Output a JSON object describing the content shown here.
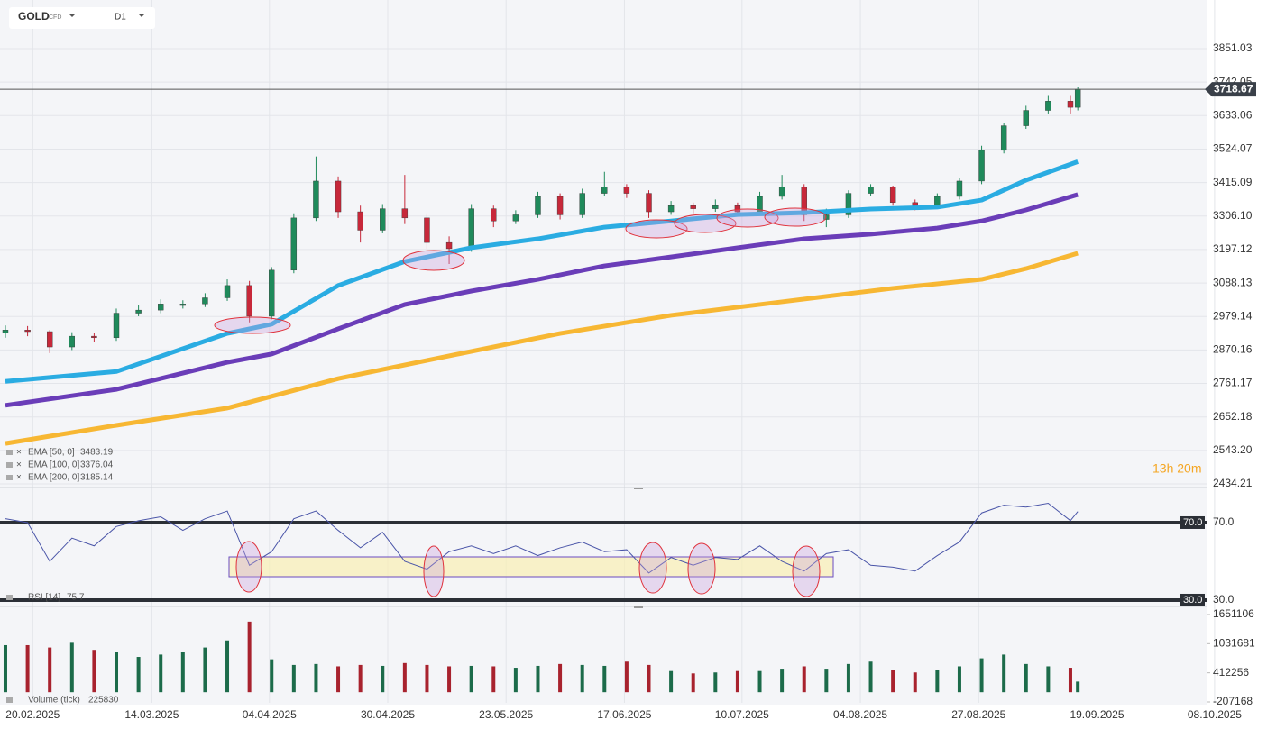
{
  "chart_data": {
    "type": "candlestick",
    "symbol": "GOLD",
    "symbol_tag": "CFD",
    "interval": "D1",
    "countdown": "13h 20m",
    "up_color": "#1f8a5b",
    "down_color": "#c7283a",
    "grid": true,
    "xlim": [
      -0.73,
      164
    ],
    "xticks": [
      {
        "value": 3.7,
        "label": "20.02.2025"
      },
      {
        "value": 19.8,
        "label": "14.03.2025"
      },
      {
        "value": 35.7,
        "label": "04.04.2025"
      },
      {
        "value": 51.7,
        "label": "30.04.2025"
      },
      {
        "value": 67.7,
        "label": "23.05.2025"
      },
      {
        "value": 83.7,
        "label": "17.06.2025"
      },
      {
        "value": 99.6,
        "label": "10.07.2025"
      },
      {
        "value": 115.6,
        "label": "04.08.2025"
      },
      {
        "value": 131.6,
        "label": "27.08.2025"
      },
      {
        "value": 147.6,
        "label": "19.09.2025"
      },
      {
        "value": 163.5,
        "label": "08.10.2025"
      }
    ],
    "price": {
      "ylim": [
        2425.5,
        4009.4
      ],
      "yticks": [
        3851.03,
        3742.05,
        3633.06,
        3524.07,
        3415.09,
        {
          "value": 3306.1,
          "label": "3306.10"
        },
        3197.12,
        3088.13,
        2979.14,
        2870.16,
        2761.17,
        2652.18,
        {
          "value": 2543.2,
          "label": "2543.20"
        },
        2434.21
      ],
      "x": [
        0,
        3,
        6,
        9,
        12,
        15,
        18,
        21,
        24,
        27,
        30,
        33,
        36,
        39,
        42,
        45,
        48,
        51,
        54,
        57,
        60,
        63,
        66,
        69,
        72,
        75,
        78,
        81,
        84,
        87,
        90,
        93,
        96,
        99,
        102,
        105,
        108,
        111,
        114,
        117,
        120,
        123,
        126,
        129,
        132,
        135,
        138,
        141,
        144,
        145
      ],
      "candles": [
        {
          "open": 2925,
          "high": 2950,
          "low": 2910,
          "close": 2935
        },
        {
          "open": 2935,
          "high": 2948,
          "low": 2915,
          "close": 2930
        },
        {
          "open": 2930,
          "high": 2935,
          "low": 2860,
          "close": 2880
        },
        {
          "open": 2880,
          "high": 2928,
          "low": 2870,
          "close": 2915
        },
        {
          "open": 2915,
          "high": 2925,
          "low": 2895,
          "close": 2910
        },
        {
          "open": 2910,
          "high": 3005,
          "low": 2900,
          "close": 2990
        },
        {
          "open": 2990,
          "high": 3015,
          "low": 2980,
          "close": 3000
        },
        {
          "open": 3000,
          "high": 3035,
          "low": 2990,
          "close": 3020
        },
        {
          "open": 3015,
          "high": 3032,
          "low": 3005,
          "close": 3020
        },
        {
          "open": 3020,
          "high": 3055,
          "low": 3010,
          "close": 3040
        },
        {
          "open": 3040,
          "high": 3100,
          "low": 3030,
          "close": 3080
        },
        {
          "open": 3080,
          "high": 3095,
          "low": 2960,
          "close": 2980
        },
        {
          "open": 2980,
          "high": 3140,
          "low": 2970,
          "close": 3130
        },
        {
          "open": 3130,
          "high": 3315,
          "low": 3120,
          "close": 3300
        },
        {
          "open": 3300,
          "high": 3500,
          "low": 3290,
          "close": 3420
        },
        {
          "open": 3420,
          "high": 3435,
          "low": 3300,
          "close": 3320
        },
        {
          "open": 3320,
          "high": 3340,
          "low": 3220,
          "close": 3260
        },
        {
          "open": 3260,
          "high": 3345,
          "low": 3250,
          "close": 3330
        },
        {
          "open": 3330,
          "high": 3440,
          "low": 3280,
          "close": 3300
        },
        {
          "open": 3300,
          "high": 3315,
          "low": 3200,
          "close": 3220
        },
        {
          "open": 3220,
          "high": 3240,
          "low": 3150,
          "close": 3200
        },
        {
          "open": 3200,
          "high": 3345,
          "low": 3190,
          "close": 3330
        },
        {
          "open": 3330,
          "high": 3340,
          "low": 3270,
          "close": 3290
        },
        {
          "open": 3290,
          "high": 3325,
          "low": 3280,
          "close": 3310
        },
        {
          "open": 3310,
          "high": 3385,
          "low": 3300,
          "close": 3370
        },
        {
          "open": 3370,
          "high": 3380,
          "low": 3295,
          "close": 3310
        },
        {
          "open": 3310,
          "high": 3395,
          "low": 3300,
          "close": 3380
        },
        {
          "open": 3380,
          "high": 3450,
          "low": 3370,
          "close": 3400
        },
        {
          "open": 3400,
          "high": 3410,
          "low": 3365,
          "close": 3380
        },
        {
          "open": 3380,
          "high": 3390,
          "low": 3300,
          "close": 3320
        },
        {
          "open": 3320,
          "high": 3355,
          "low": 3310,
          "close": 3340
        },
        {
          "open": 3340,
          "high": 3350,
          "low": 3315,
          "close": 3330
        },
        {
          "open": 3330,
          "high": 3360,
          "low": 3320,
          "close": 3340
        },
        {
          "open": 3340,
          "high": 3350,
          "low": 3305,
          "close": 3320
        },
        {
          "open": 3320,
          "high": 3385,
          "low": 3315,
          "close": 3370
        },
        {
          "open": 3370,
          "high": 3440,
          "low": 3360,
          "close": 3400
        },
        {
          "open": 3400,
          "high": 3410,
          "low": 3290,
          "close": 3310
        },
        {
          "open": 3295,
          "high": 3330,
          "low": 3270,
          "close": 3310
        },
        {
          "open": 3310,
          "high": 3390,
          "low": 3300,
          "close": 3380
        },
        {
          "open": 3380,
          "high": 3410,
          "low": 3370,
          "close": 3400
        },
        {
          "open": 3400,
          "high": 3405,
          "low": 3340,
          "close": 3350
        },
        {
          "open": 3350,
          "high": 3360,
          "low": 3325,
          "close": 3340
        },
        {
          "open": 3340,
          "high": 3380,
          "low": 3330,
          "close": 3370
        },
        {
          "open": 3370,
          "high": 3430,
          "low": 3360,
          "close": 3420
        },
        {
          "open": 3420,
          "high": 3535,
          "low": 3410,
          "close": 3520
        },
        {
          "open": 3520,
          "high": 3610,
          "low": 3510,
          "close": 3600
        },
        {
          "open": 3600,
          "high": 3665,
          "low": 3590,
          "close": 3650
        },
        {
          "open": 3650,
          "high": 3700,
          "low": 3640,
          "close": 3680
        },
        {
          "open": 3680,
          "high": 3700,
          "low": 3640,
          "close": 3660
        },
        {
          "open": 3660,
          "high": 3725,
          "low": 3650,
          "close": 3718.67
        }
      ],
      "ema": [
        {
          "name": "EMA [50,  0]",
          "color": "#2aace2",
          "x": [
            0,
            15,
            30,
            36,
            45,
            54,
            63,
            72,
            81,
            90,
            99,
            108,
            117,
            126,
            132,
            138,
            145
          ],
          "values": [
            2768,
            2800,
            2924,
            2954,
            3080,
            3158,
            3203,
            3232,
            3270,
            3290,
            3311,
            3317,
            3329,
            3335,
            3358,
            3423,
            3483.19
          ]
        },
        {
          "name": "EMA [100,  0]",
          "color": "#6a3db8",
          "x": [
            0,
            15,
            30,
            36,
            45,
            54,
            63,
            72,
            81,
            90,
            99,
            108,
            117,
            126,
            132,
            138,
            145
          ],
          "values": [
            2690,
            2742,
            2830,
            2857,
            2939,
            3018,
            3062,
            3100,
            3144,
            3173,
            3203,
            3232,
            3247,
            3267,
            3290,
            3326,
            3376.04
          ]
        },
        {
          "name": "EMA [200,  0]",
          "color": "#f7b733",
          "x": [
            0,
            15,
            30,
            45,
            60,
            75,
            90,
            105,
            120,
            132,
            138,
            145
          ],
          "values": [
            2566,
            2625,
            2681,
            2777,
            2851,
            2924,
            2983,
            3027,
            3071,
            3100,
            3135,
            3185.14
          ]
        }
      ]
    },
    "rsi": {
      "name": "RSI [14]",
      "color": "#4a55a8",
      "ylim": [
        27.2,
        87.2
      ],
      "yticks": [
        {
          "value": 70,
          "label": "70.0"
        },
        {
          "value": 30,
          "label": "30.0"
        }
      ],
      "values": [
        72,
        70,
        50,
        62,
        58,
        68,
        71,
        73,
        66,
        72,
        76,
        48,
        55,
        72,
        76,
        66,
        57,
        65,
        50,
        46,
        55,
        58,
        54,
        58,
        53,
        57,
        60,
        55,
        56,
        44,
        52,
        48,
        52,
        51,
        58,
        50,
        45,
        54,
        56,
        48,
        47,
        45,
        53,
        60,
        75,
        79,
        78,
        80,
        71,
        75.7
      ]
    },
    "volume": {
      "name": "Volume (tick)",
      "ylim": [
        -226300,
        1804000
      ],
      "yticks": [
        1651106,
        1031681,
        412256,
        -207168
      ],
      "values": [
        1000000,
        1000000,
        950000,
        1050000,
        900000,
        850000,
        750000,
        800000,
        850000,
        950000,
        1100000,
        1500000,
        700000,
        580000,
        600000,
        550000,
        580000,
        560000,
        620000,
        580000,
        550000,
        560000,
        550000,
        520000,
        560000,
        600000,
        580000,
        560000,
        650000,
        580000,
        450000,
        400000,
        420000,
        450000,
        450000,
        500000,
        550000,
        500000,
        600000,
        650000,
        480000,
        420000,
        470000,
        550000,
        720000,
        800000,
        600000,
        550000,
        520000,
        225830
      ]
    }
  }
}
